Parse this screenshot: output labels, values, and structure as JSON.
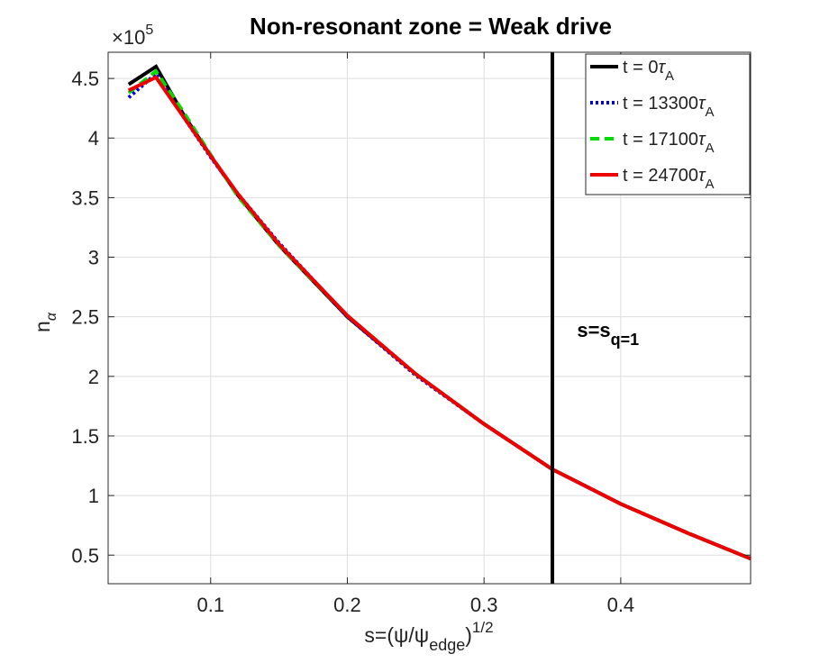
{
  "chart_data": {
    "type": "line",
    "title": "Non-resonant zone = Weak drive",
    "xlabel": {
      "base": "s=(ψ/ψ",
      "sub": "edge",
      "rest": ")",
      "sup": "1/2"
    },
    "ylabel": {
      "base": "n",
      "sub": "α"
    },
    "y_multiplier": {
      "base": "×10",
      "exp": "5"
    },
    "xlim": [
      0.025,
      0.495
    ],
    "ylim": [
      0.26,
      4.72
    ],
    "xticks": [
      0.1,
      0.2,
      0.3,
      0.4
    ],
    "xtick_labels": [
      "0.1",
      "0.2",
      "0.3",
      "0.4"
    ],
    "yticks": [
      0.5,
      1,
      1.5,
      2,
      2.5,
      3,
      3.5,
      4,
      4.5
    ],
    "ytick_labels": [
      "0.5",
      "1",
      "1.5",
      "2",
      "2.5",
      "3",
      "3.5",
      "4",
      "4.5"
    ],
    "grid": true,
    "legend_position": "top-right",
    "series": [
      {
        "name": "t = 0τA",
        "label_main": "t = 0",
        "label_tau": "τ",
        "label_sub": "A",
        "color": "#000000",
        "style": "solid",
        "x": [
          0.04,
          0.06,
          0.08,
          0.1,
          0.12,
          0.15,
          0.2,
          0.25,
          0.3,
          0.35,
          0.4,
          0.45,
          0.495
        ],
        "y": [
          4.45,
          4.6,
          4.2,
          3.85,
          3.52,
          3.1,
          2.5,
          2.02,
          1.6,
          1.22,
          0.93,
          0.68,
          0.47
        ]
      },
      {
        "name": "t = 13300τA",
        "label_main": "t = 13300",
        "label_tau": "τ",
        "label_sub": "A",
        "color": "#0000dd",
        "style": "dotted",
        "x": [
          0.04,
          0.06,
          0.08,
          0.1,
          0.12,
          0.15,
          0.2,
          0.25,
          0.3,
          0.35,
          0.4,
          0.45,
          0.495
        ],
        "y": [
          4.34,
          4.54,
          4.18,
          3.84,
          3.53,
          3.12,
          2.5,
          2.01,
          1.6,
          1.22,
          0.93,
          0.68,
          0.47
        ]
      },
      {
        "name": "t = 17100τA",
        "label_main": "t = 17100",
        "label_tau": "τ",
        "label_sub": "A",
        "color": "#00dd00",
        "style": "dashed",
        "x": [
          0.04,
          0.06,
          0.08,
          0.1,
          0.12,
          0.15,
          0.2,
          0.25,
          0.3,
          0.35,
          0.4,
          0.45,
          0.495
        ],
        "y": [
          4.38,
          4.56,
          4.22,
          3.86,
          3.51,
          3.1,
          2.51,
          2.02,
          1.6,
          1.22,
          0.93,
          0.68,
          0.47
        ]
      },
      {
        "name": "t = 24700τA",
        "label_main": "t = 24700",
        "label_tau": "τ",
        "label_sub": "A",
        "color": "#ee0000",
        "style": "solid",
        "x": [
          0.04,
          0.06,
          0.08,
          0.1,
          0.12,
          0.15,
          0.2,
          0.25,
          0.3,
          0.35,
          0.4,
          0.45,
          0.495
        ],
        "y": [
          4.4,
          4.51,
          4.18,
          3.85,
          3.53,
          3.11,
          2.51,
          2.02,
          1.6,
          1.22,
          0.93,
          0.68,
          0.47
        ]
      }
    ],
    "vline": {
      "x": 0.35,
      "color": "#000000"
    },
    "annotation": {
      "base": "s=s",
      "sub": "q=1",
      "x": 0.368,
      "y": 2.33
    }
  }
}
